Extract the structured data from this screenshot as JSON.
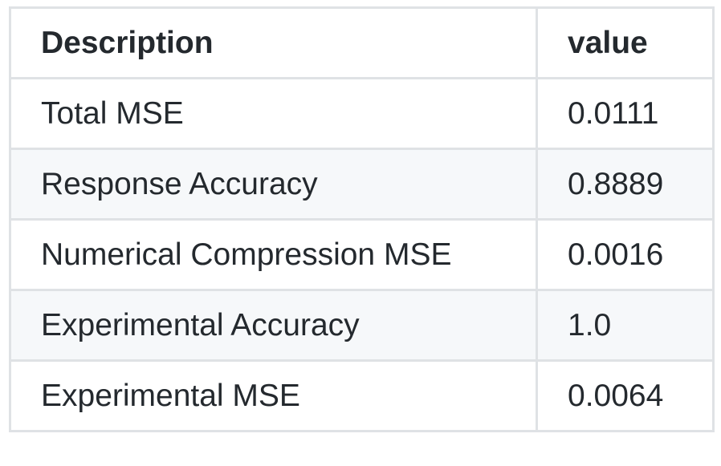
{
  "table": {
    "headers": [
      "Description",
      "value"
    ],
    "rows": [
      [
        "Total MSE",
        "0.0111"
      ],
      [
        "Response Accuracy",
        "0.8889"
      ],
      [
        "Numerical Compression MSE",
        "0.0016"
      ],
      [
        "Experimental Accuracy",
        "1.0"
      ],
      [
        "Experimental MSE",
        "0.0064"
      ]
    ]
  },
  "colors": {
    "border": "#dfe2e5",
    "stripe": "#f6f8fa",
    "text": "#24292e"
  }
}
